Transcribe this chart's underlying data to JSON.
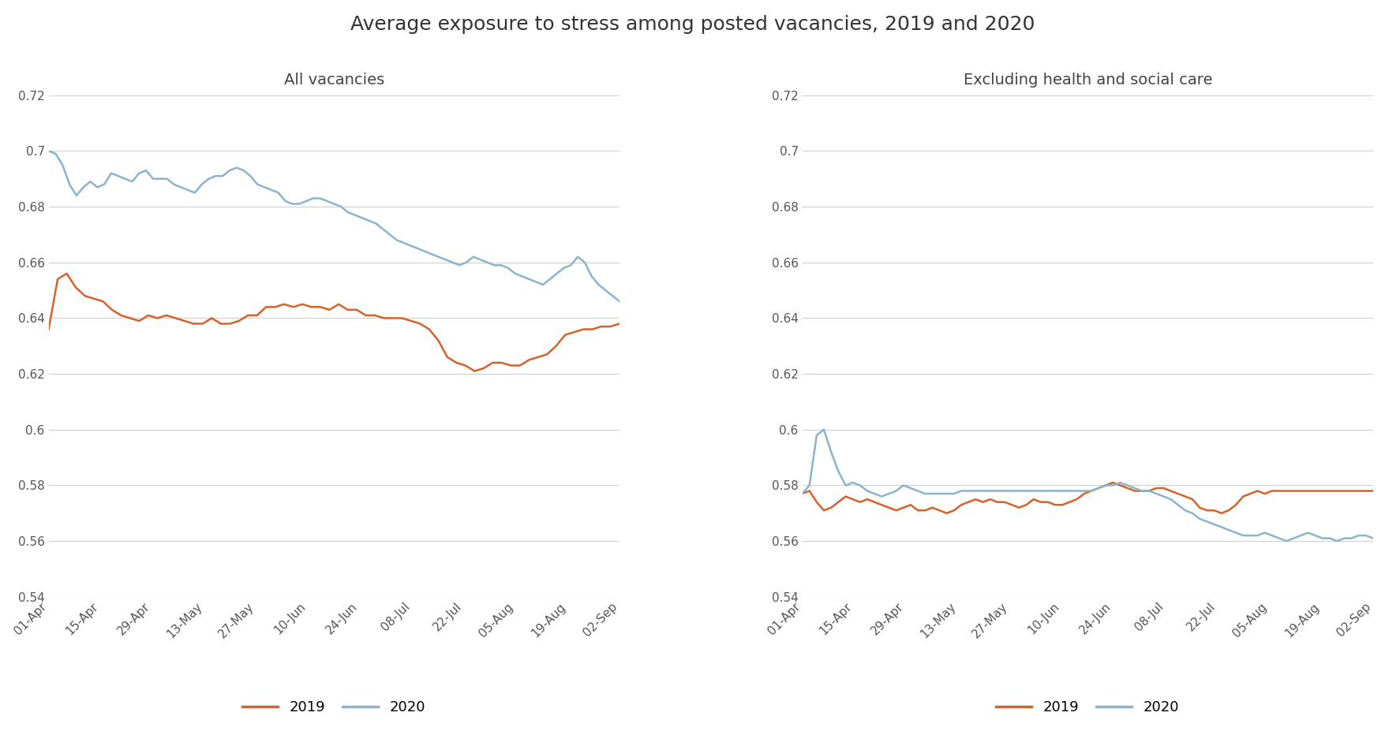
{
  "title": "Average exposure to stress among posted vacancies, 2019 and 2020",
  "left_subtitle": "All vacancies",
  "right_subtitle": "Excluding health and social care",
  "x_labels": [
    "01-Apr",
    "15-Apr",
    "29-Apr",
    "13-May",
    "27-May",
    "10-Jun",
    "24-Jun",
    "08-Jul",
    "22-Jul",
    "05-Aug",
    "19-Aug",
    "02-Sep"
  ],
  "ylim": [
    0.54,
    0.72
  ],
  "yticks": [
    0.54,
    0.56,
    0.58,
    0.6,
    0.62,
    0.64,
    0.66,
    0.68,
    0.7,
    0.72
  ],
  "color_2019": "#d4622a",
  "color_2020": "#8ab4cc",
  "left_2019": [
    0.636,
    0.654,
    0.656,
    0.651,
    0.648,
    0.647,
    0.646,
    0.643,
    0.641,
    0.64,
    0.639,
    0.641,
    0.64,
    0.641,
    0.64,
    0.639,
    0.638,
    0.638,
    0.64,
    0.638,
    0.638,
    0.639,
    0.641,
    0.641,
    0.644,
    0.644,
    0.645,
    0.644,
    0.645,
    0.644,
    0.644,
    0.643,
    0.645,
    0.643,
    0.643,
    0.641,
    0.641,
    0.64,
    0.64,
    0.64,
    0.639,
    0.638,
    0.636,
    0.632,
    0.626,
    0.624,
    0.623,
    0.621,
    0.622,
    0.624,
    0.624,
    0.623,
    0.623,
    0.625,
    0.626,
    0.627,
    0.63,
    0.634,
    0.635,
    0.636,
    0.636,
    0.637,
    0.637,
    0.638
  ],
  "left_2020": [
    0.7,
    0.699,
    0.695,
    0.688,
    0.684,
    0.687,
    0.689,
    0.687,
    0.688,
    0.692,
    0.691,
    0.69,
    0.689,
    0.692,
    0.693,
    0.69,
    0.69,
    0.69,
    0.688,
    0.687,
    0.686,
    0.685,
    0.688,
    0.69,
    0.691,
    0.691,
    0.693,
    0.694,
    0.693,
    0.691,
    0.688,
    0.687,
    0.686,
    0.685,
    0.682,
    0.681,
    0.681,
    0.682,
    0.683,
    0.683,
    0.682,
    0.681,
    0.68,
    0.678,
    0.677,
    0.676,
    0.675,
    0.674,
    0.672,
    0.67,
    0.668,
    0.667,
    0.666,
    0.665,
    0.664,
    0.663,
    0.662,
    0.661,
    0.66,
    0.659,
    0.66,
    0.662,
    0.661,
    0.66,
    0.659,
    0.659,
    0.658,
    0.656,
    0.655,
    0.654,
    0.653,
    0.652,
    0.654,
    0.656,
    0.658,
    0.659,
    0.662,
    0.66,
    0.655,
    0.652,
    0.65,
    0.648,
    0.646
  ],
  "right_2019": [
    0.577,
    0.578,
    0.574,
    0.571,
    0.572,
    0.574,
    0.576,
    0.575,
    0.574,
    0.575,
    0.574,
    0.573,
    0.572,
    0.571,
    0.572,
    0.573,
    0.571,
    0.571,
    0.572,
    0.571,
    0.57,
    0.571,
    0.573,
    0.574,
    0.575,
    0.574,
    0.575,
    0.574,
    0.574,
    0.573,
    0.572,
    0.573,
    0.575,
    0.574,
    0.574,
    0.573,
    0.573,
    0.574,
    0.575,
    0.577,
    0.578,
    0.579,
    0.58,
    0.581,
    0.58,
    0.579,
    0.578,
    0.578,
    0.578,
    0.579,
    0.579,
    0.578,
    0.577,
    0.576,
    0.575,
    0.572,
    0.571,
    0.571,
    0.57,
    0.571,
    0.573,
    0.576,
    0.577,
    0.578,
    0.577,
    0.578,
    0.578,
    0.578,
    0.578,
    0.578,
    0.578,
    0.578,
    0.578,
    0.578,
    0.578,
    0.578,
    0.578,
    0.578,
    0.578,
    0.578
  ],
  "right_2020": [
    0.577,
    0.58,
    0.598,
    0.6,
    0.592,
    0.585,
    0.58,
    0.581,
    0.58,
    0.578,
    0.577,
    0.576,
    0.577,
    0.578,
    0.58,
    0.579,
    0.578,
    0.577,
    0.577,
    0.577,
    0.577,
    0.577,
    0.578,
    0.578,
    0.578,
    0.578,
    0.578,
    0.578,
    0.578,
    0.578,
    0.578,
    0.578,
    0.578,
    0.578,
    0.578,
    0.578,
    0.578,
    0.578,
    0.578,
    0.578,
    0.578,
    0.579,
    0.58,
    0.58,
    0.581,
    0.58,
    0.579,
    0.578,
    0.578,
    0.577,
    0.576,
    0.575,
    0.573,
    0.571,
    0.57,
    0.568,
    0.567,
    0.566,
    0.565,
    0.564,
    0.563,
    0.562,
    0.562,
    0.562,
    0.563,
    0.562,
    0.561,
    0.56,
    0.561,
    0.562,
    0.563,
    0.562,
    0.561,
    0.561,
    0.56,
    0.561,
    0.561,
    0.562,
    0.562,
    0.561
  ],
  "background_color": "#ffffff",
  "grid_color": "#d0d0d0",
  "title_fontsize": 18,
  "subtitle_fontsize": 14,
  "tick_fontsize": 11,
  "legend_fontsize": 13,
  "line_width": 1.8
}
